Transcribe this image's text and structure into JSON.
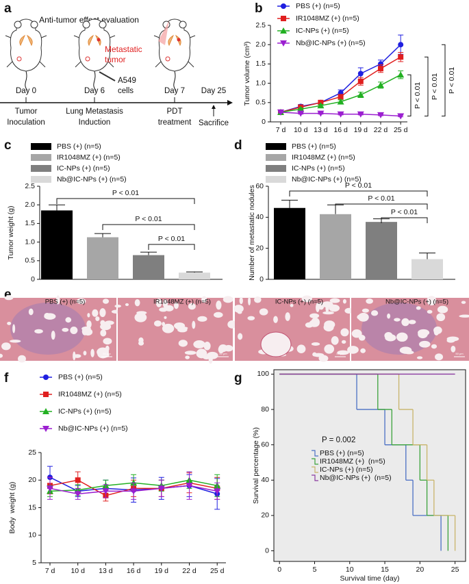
{
  "schematic": {
    "panel_label": "a",
    "title": "Anti-tumor effect evaluation",
    "tumor_label": [
      "Metastatic",
      "tumor"
    ],
    "cells_label": [
      "A549",
      "cells"
    ],
    "days": [
      "Day 0",
      "Day 6",
      "Day 7",
      "Day 25"
    ],
    "steps": [
      [
        "Tumor",
        "Inoculation"
      ],
      [
        "Lung Metastasis",
        "Induction"
      ],
      [
        "PDT",
        "treatment"
      ]
    ],
    "end_label": "Sacrifice"
  },
  "histology": {
    "panel_label": "e",
    "labels": [
      "PBS (+) (n=5)",
      "IR1048MZ (+) (n=5)",
      "IC-NPs (+) (n=5)",
      "Nb@IC-NPs (+) (n=5)"
    ],
    "scale_bar": "50 μm"
  },
  "chart_data": [
    {
      "panel_label": "b",
      "type": "line",
      "ylabel": "Tumor volume (cm³)",
      "categories": [
        "7 d",
        "10 d",
        "13 d",
        "16 d",
        "19 d",
        "22 d",
        "25 d"
      ],
      "ylim": [
        0,
        2.5
      ],
      "yticks": [
        0,
        0.5,
        {
          "value": 1,
          "label": "1.0"
        },
        1.5,
        {
          "value": 2,
          "label": "2.0"
        },
        2.5
      ],
      "series": [
        {
          "name": "PBS (+) (n=5)",
          "color": "#1f1fe0",
          "marker": "circle",
          "values": [
            0.25,
            0.4,
            0.5,
            0.75,
            1.25,
            1.5,
            2.0
          ],
          "errors": [
            0.03,
            0.05,
            0.05,
            0.08,
            0.15,
            0.1,
            0.25
          ]
        },
        {
          "name": "IR1048MZ (+) (n=5)",
          "color": "#e01f1f",
          "marker": "square",
          "values": [
            0.25,
            0.38,
            0.5,
            0.65,
            1.05,
            1.38,
            1.68
          ],
          "errors": [
            0.03,
            0.04,
            0.04,
            0.06,
            0.1,
            0.1,
            0.12
          ]
        },
        {
          "name": "IC-NPs (+) (n=5)",
          "color": "#22b022",
          "marker": "triangle-up",
          "values": [
            0.25,
            0.33,
            0.42,
            0.52,
            0.7,
            0.95,
            1.22
          ],
          "errors": [
            0.02,
            0.03,
            0.03,
            0.05,
            0.07,
            0.08,
            0.1
          ]
        },
        {
          "name": "Nb@IC-NPs (+) (n=5)",
          "color": "#9b1fd0",
          "marker": "triangle-down",
          "values": [
            0.25,
            0.22,
            0.22,
            0.2,
            0.2,
            0.18,
            0.15
          ],
          "errors": [
            0.02,
            0.02,
            0.02,
            0.02,
            0.02,
            0.02,
            0.02
          ]
        }
      ],
      "annotations": [
        "P < 0.01",
        "P < 0.01",
        "P < 0.01"
      ]
    },
    {
      "panel_label": "c",
      "type": "bar",
      "ylabel": "Tumor weight (g)",
      "categories": [
        "PBS (+) (n=5)",
        "IR1048MZ (+) (n=5)",
        "IC-NPs (+) (n=5)",
        "Nb@IC-NPs (+) (n=5)"
      ],
      "colors": [
        "#000000",
        "#a6a6a6",
        "#7f7f7f",
        "#d9d9d9"
      ],
      "values": [
        1.85,
        1.13,
        0.65,
        0.18
      ],
      "errors": [
        0.15,
        0.1,
        0.08,
        0.02
      ],
      "ylim": [
        0,
        2.5
      ],
      "yticks": [
        0,
        0.5,
        {
          "value": 1,
          "label": "1.0"
        },
        1.5,
        {
          "value": 2,
          "label": "2.0"
        },
        2.5
      ],
      "annotations": [
        "P < 0.01",
        "P < 0.01",
        "P < 0.01"
      ]
    },
    {
      "panel_label": "d",
      "type": "bar",
      "ylabel": "Number of metastatic nodules",
      "categories": [
        "PBS (+) (n=5)",
        "IR1048MZ (+) (n=5)",
        "IC-NPs (+) (n=5)",
        "Nb@IC-NPs (+) (n=5)"
      ],
      "colors": [
        "#000000",
        "#a6a6a6",
        "#7f7f7f",
        "#d9d9d9"
      ],
      "values": [
        46,
        42,
        37,
        13
      ],
      "errors": [
        5,
        6,
        2,
        4
      ],
      "ylim": [
        0,
        60
      ],
      "yticks": [
        0,
        20,
        40,
        60
      ],
      "annotations": [
        "P < 0.01",
        "P < 0.01",
        "P < 0.01"
      ]
    },
    {
      "panel_label": "f",
      "type": "line",
      "ylabel": "Body  weight (g)",
      "categories": [
        "7 d",
        "10 d",
        "13 d",
        "16 d",
        "19 d",
        "22 d",
        "25 d"
      ],
      "ylim": [
        5,
        25
      ],
      "yticks": [
        5,
        10,
        15,
        20,
        25
      ],
      "series": [
        {
          "name": "PBS (+) (n=5)",
          "color": "#1f1fe0",
          "marker": "circle",
          "values": [
            20.5,
            18,
            18.5,
            18.2,
            18.5,
            19,
            17.5
          ],
          "errors": [
            2,
            1,
            1.5,
            2.2,
            2,
            2,
            2.8
          ]
        },
        {
          "name": "IR1048MZ (+) (n=5)",
          "color": "#e01f1f",
          "marker": "square",
          "values": [
            19,
            20,
            17.2,
            18.5,
            18.5,
            19.5,
            18.5
          ],
          "errors": [
            1.5,
            1.5,
            1,
            1.5,
            1.5,
            1.8,
            2
          ]
        },
        {
          "name": "IC-NPs (+) (n=5)",
          "color": "#22b022",
          "marker": "triangle-up",
          "values": [
            18,
            18.2,
            19,
            19.5,
            19,
            20,
            19
          ],
          "errors": [
            1,
            1,
            1,
            1.5,
            1,
            1.5,
            2
          ]
        },
        {
          "name": "Nb@IC-NPs (+) (n=5)",
          "color": "#9b1fd0",
          "marker": "triangle-down",
          "values": [
            18.5,
            17.5,
            18,
            18,
            18.5,
            19,
            18
          ],
          "errors": [
            2,
            1,
            1.2,
            1.5,
            1.5,
            2.5,
            1.5
          ]
        }
      ]
    },
    {
      "panel_label": "g",
      "type": "step",
      "xlabel": "Survival time (day)",
      "ylabel": "Survival percentage (%)",
      "xlim": [
        -0.8,
        26.5
      ],
      "ylim": [
        -6,
        102.5
      ],
      "xticks": [
        0,
        5,
        10,
        15,
        20,
        25
      ],
      "yticks": [
        0,
        20,
        40,
        60,
        80,
        100
      ],
      "annotation": "P = 0.002",
      "series": [
        {
          "name": "PBS (+) (n=5)",
          "color": "#4a6fc4",
          "x": [
            0,
            11,
            15,
            18,
            19,
            23
          ],
          "y": [
            100,
            80,
            60,
            40,
            20,
            0
          ]
        },
        {
          "name": "IR1048MZ (+)  (n=5)",
          "color": "#3aa23a",
          "x": [
            0,
            14,
            16,
            20,
            21,
            24
          ],
          "y": [
            100,
            80,
            60,
            40,
            20,
            0
          ]
        },
        {
          "name": "IC-NPs (+) (n=5)",
          "color": "#c8b46a",
          "x": [
            0,
            17,
            19,
            21,
            22,
            25
          ],
          "y": [
            100,
            80,
            60,
            40,
            20,
            0
          ]
        },
        {
          "name": "Nb@IC-NPs (+)  (n=5)",
          "color": "#8a3aa0",
          "x": [
            0,
            25
          ],
          "y": [
            100,
            100
          ]
        }
      ]
    }
  ]
}
